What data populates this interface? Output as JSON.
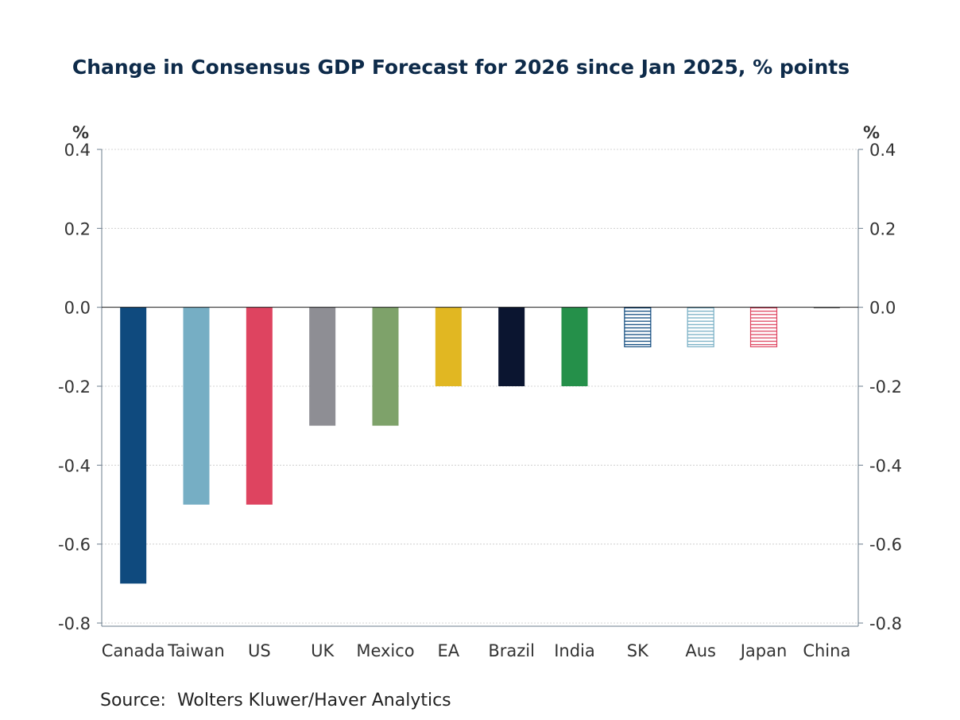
{
  "chart_data": {
    "type": "bar",
    "title": "Change in Consensus GDP Forecast for 2026 since Jan 2025, % points",
    "categories": [
      "Canada",
      "Taiwan",
      "US",
      "UK",
      "Mexico",
      "EA",
      "Brazil",
      "India",
      "SK",
      "Aus",
      "Japan",
      "China"
    ],
    "values": [
      -0.7,
      -0.5,
      -0.5,
      -0.3,
      -0.3,
      -0.2,
      -0.2,
      -0.2,
      -0.1,
      -0.1,
      -0.1,
      0.0
    ],
    "colors": [
      "#0f4a7e",
      "#76aec4",
      "#de4460",
      "#8e8e94",
      "#7ea26a",
      "#e1b722",
      "#0b1530",
      "#25904a",
      "#0f4a7e",
      "#76aec4",
      "#de4460",
      "#333333"
    ],
    "hatched": [
      false,
      false,
      false,
      false,
      false,
      false,
      false,
      false,
      true,
      true,
      true,
      false
    ],
    "ylim": [
      -0.8,
      0.4
    ],
    "yticks": [
      0.4,
      0.2,
      0.0,
      -0.2,
      -0.4,
      -0.6,
      -0.8
    ],
    "ytick_labels": [
      "0.4",
      "0.2",
      "0.0",
      "-0.2",
      "-0.4",
      "-0.6",
      "-0.8"
    ],
    "ylabel_left": "%",
    "ylabel_right": "%",
    "xlabel": "",
    "grid": true
  },
  "source": "Source:  Wolters Kluwer/Haver Analytics"
}
